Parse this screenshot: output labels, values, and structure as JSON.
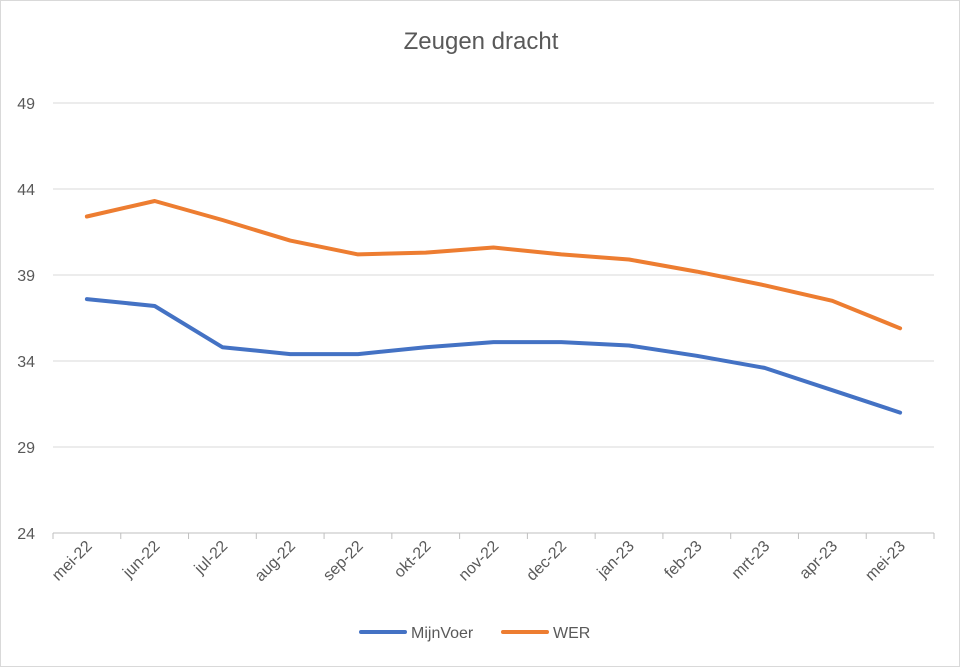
{
  "chart_data": {
    "type": "line",
    "title": "Zeugen dracht",
    "xlabel": "",
    "ylabel": "",
    "categories": [
      "mei-22",
      "jun-22",
      "jul-22",
      "aug-22",
      "sep-22",
      "okt-22",
      "nov-22",
      "dec-22",
      "jan-23",
      "feb-23",
      "mrt-23",
      "apr-23",
      "mei-23"
    ],
    "ylim": [
      24,
      49
    ],
    "yticks": [
      24,
      29,
      34,
      39,
      44,
      49
    ],
    "grid": true,
    "legend_position": "bottom",
    "series": [
      {
        "name": "MijnVoer",
        "color": "#4472C4",
        "values": [
          37.6,
          37.2,
          34.8,
          34.4,
          34.4,
          34.8,
          35.1,
          35.1,
          34.9,
          34.3,
          33.6,
          32.3,
          31.0
        ]
      },
      {
        "name": "WER",
        "color": "#ED7D31",
        "values": [
          42.4,
          43.3,
          42.2,
          41.0,
          40.2,
          40.3,
          40.6,
          40.2,
          39.9,
          39.2,
          38.4,
          37.5,
          35.9
        ]
      }
    ]
  }
}
